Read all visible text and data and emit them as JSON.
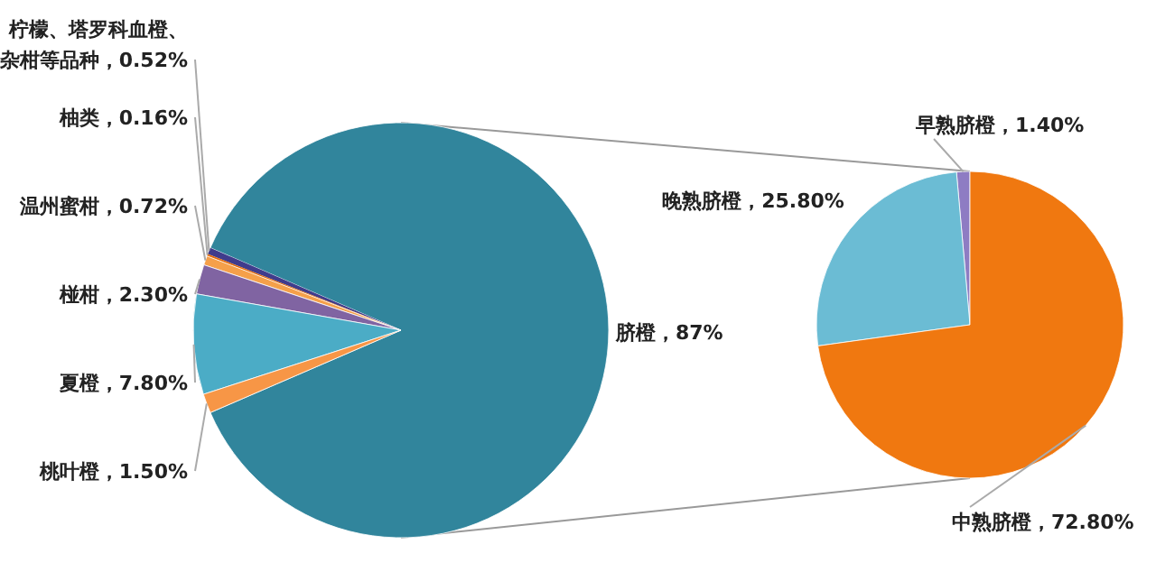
{
  "chart_data": [
    {
      "type": "pie",
      "categories": [
        "脐橙",
        "柠檬、塔罗科血橙、杂柑等品种",
        "柚类",
        "温州蜜柑",
        "椪柑",
        "夏橙",
        "桃叶橙"
      ],
      "values": [
        87,
        0.52,
        0.16,
        0.72,
        2.3,
        7.8,
        1.5
      ],
      "value_labels": [
        "87%",
        "0.52%",
        "0.16%",
        "0.72%",
        "2.30%",
        "7.80%",
        "1.50%"
      ],
      "colors": [
        "#31859c",
        "#403c8c",
        "#e46c0a",
        "#f5a04a",
        "#8064a2",
        "#4bacc6",
        "#f79646"
      ]
    },
    {
      "type": "pie",
      "categories": [
        "早熟脐橙",
        "晚熟脐橙",
        "中熟脐橙"
      ],
      "values": [
        1.4,
        25.8,
        72.8
      ],
      "value_labels": [
        "1.40%",
        "25.80%",
        "72.80%"
      ],
      "colors": [
        "#8e7cc3",
        "#6bbcd4",
        "#f07810"
      ]
    }
  ]
}
